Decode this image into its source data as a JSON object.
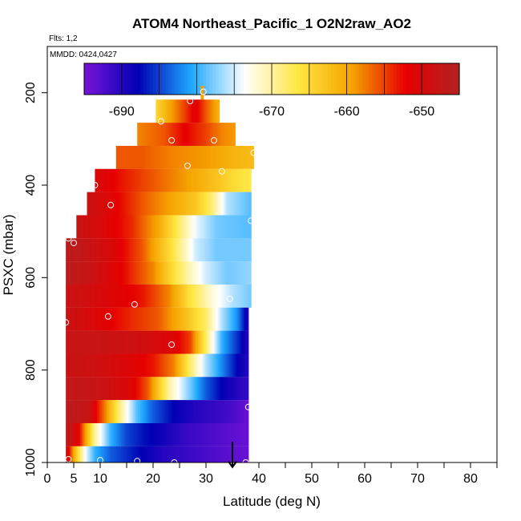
{
  "chart_data": {
    "type": "heatmap",
    "title": "ATOM4 Northeast_Pacific_1 O2N2raw_AO2",
    "flights_label": "Flts: 1,2",
    "dates_label": "MMDD: 0424,0427",
    "xlabel": "Latitude (deg N)",
    "ylabel": "PSXC (mbar)",
    "xlim": [
      0,
      85
    ],
    "ylim": [
      1000,
      100
    ],
    "y_reversed": true,
    "x_ticks": [
      0,
      5,
      10,
      20,
      30,
      40,
      50,
      60,
      70,
      80
    ],
    "x_minor_ticks": [
      15,
      25,
      35,
      45,
      55,
      65,
      75,
      85
    ],
    "y_ticks": [
      200,
      400,
      600,
      800,
      1000
    ],
    "colorbar": {
      "range": [
        -695,
        -645
      ],
      "ticks": [
        -690,
        -680,
        -670,
        -660,
        -650
      ],
      "colors": [
        "#7b14d9",
        "#0000b3",
        "#1fa8ff",
        "#ffffff",
        "#ffe640",
        "#f5a200",
        "#e60000",
        "#b22222"
      ]
    },
    "colorbar_ticks_text": [
      "-690",
      "-680",
      "-670",
      "-660",
      "-650"
    ],
    "layers": [
      {
        "p_top": 185,
        "p_bot": 215,
        "lat_min": 29,
        "lat_max": 29.5,
        "values": [
          [
            29,
            -659
          ],
          [
            29.5,
            -659
          ]
        ]
      },
      {
        "p_top": 215,
        "p_bot": 265,
        "lat_min": 20.5,
        "lat_max": 32.5,
        "values": [
          [
            20.5,
            -665
          ],
          [
            23,
            -660
          ],
          [
            26,
            -655
          ],
          [
            28,
            -651
          ],
          [
            30,
            -656
          ],
          [
            32.5,
            -661
          ]
        ]
      },
      {
        "p_top": 265,
        "p_bot": 315,
        "lat_min": 17,
        "lat_max": 35.5,
        "values": [
          [
            17,
            -658
          ],
          [
            22,
            -656
          ],
          [
            26,
            -652
          ],
          [
            30,
            -655
          ],
          [
            33,
            -658
          ],
          [
            35.5,
            -659
          ]
        ]
      },
      {
        "p_top": 315,
        "p_bot": 365,
        "lat_min": 13,
        "lat_max": 39,
        "values": [
          [
            13,
            -656
          ],
          [
            18,
            -656
          ],
          [
            24,
            -658
          ],
          [
            30,
            -659
          ],
          [
            35,
            -661
          ],
          [
            39,
            -662
          ]
        ]
      },
      {
        "p_top": 365,
        "p_bot": 415,
        "lat_min": 9,
        "lat_max": 38.5,
        "values": [
          [
            9,
            -650
          ],
          [
            14,
            -653
          ],
          [
            20,
            -656
          ],
          [
            26,
            -659
          ],
          [
            31,
            -662
          ],
          [
            35,
            -665
          ],
          [
            38.5,
            -667
          ]
        ]
      },
      {
        "p_top": 415,
        "p_bot": 465,
        "lat_min": 7.5,
        "lat_max": 38.5,
        "values": [
          [
            7.5,
            -648
          ],
          [
            12,
            -651
          ],
          [
            18,
            -656
          ],
          [
            24,
            -660
          ],
          [
            28,
            -663
          ],
          [
            31,
            -668
          ],
          [
            34,
            -676
          ],
          [
            38.5,
            -679
          ]
        ]
      },
      {
        "p_top": 465,
        "p_bot": 515,
        "lat_min": 5.5,
        "lat_max": 38.5,
        "values": [
          [
            5.5,
            -648
          ],
          [
            10,
            -650
          ],
          [
            16,
            -654
          ],
          [
            21,
            -660
          ],
          [
            25,
            -668
          ],
          [
            28,
            -674
          ],
          [
            32,
            -678
          ],
          [
            38.5,
            -679
          ]
        ]
      },
      {
        "p_top": 515,
        "p_bot": 565,
        "lat_min": 3.5,
        "lat_max": 38.5,
        "values": [
          [
            3.5,
            -646
          ],
          [
            6,
            -647
          ],
          [
            12,
            -650
          ],
          [
            18,
            -656
          ],
          [
            22,
            -663
          ],
          [
            25,
            -669
          ],
          [
            28,
            -675
          ],
          [
            32,
            -678
          ],
          [
            38.5,
            -678
          ]
        ]
      },
      {
        "p_top": 565,
        "p_bot": 615,
        "lat_min": 3.5,
        "lat_max": 38.5,
        "values": [
          [
            3.5,
            -646
          ],
          [
            8,
            -648
          ],
          [
            14,
            -652
          ],
          [
            20,
            -658
          ],
          [
            24,
            -666
          ],
          [
            27,
            -671
          ],
          [
            30,
            -675
          ],
          [
            34,
            -678
          ],
          [
            38.5,
            -677
          ]
        ]
      },
      {
        "p_top": 615,
        "p_bot": 665,
        "lat_min": 3.5,
        "lat_max": 38.5,
        "values": [
          [
            3.5,
            -648
          ],
          [
            10,
            -650
          ],
          [
            18,
            -653
          ],
          [
            23,
            -658
          ],
          [
            27,
            -666
          ],
          [
            31,
            -672
          ],
          [
            35,
            -676
          ],
          [
            38.5,
            -678
          ]
        ]
      },
      {
        "p_top": 665,
        "p_bot": 715,
        "lat_min": 3.5,
        "lat_max": 38,
        "values": [
          [
            3.5,
            -648
          ],
          [
            10,
            -651
          ],
          [
            16,
            -654
          ],
          [
            21,
            -656
          ],
          [
            26,
            -662
          ],
          [
            30,
            -668
          ],
          [
            33,
            -676
          ],
          [
            36,
            -682
          ],
          [
            38,
            -690
          ]
        ]
      },
      {
        "p_top": 715,
        "p_bot": 765,
        "lat_min": 3.5,
        "lat_max": 38,
        "values": [
          [
            3.5,
            -648
          ],
          [
            10,
            -648
          ],
          [
            18,
            -649
          ],
          [
            24,
            -651
          ],
          [
            27,
            -655
          ],
          [
            30,
            -668
          ],
          [
            33,
            -680
          ],
          [
            36,
            -686
          ],
          [
            38,
            -690
          ]
        ]
      },
      {
        "p_top": 765,
        "p_bot": 815,
        "lat_min": 3.5,
        "lat_max": 38,
        "values": [
          [
            3.5,
            -648
          ],
          [
            10,
            -649
          ],
          [
            16,
            -651
          ],
          [
            20,
            -653
          ],
          [
            24,
            -658
          ],
          [
            27,
            -668
          ],
          [
            30,
            -676
          ],
          [
            33,
            -682
          ],
          [
            36,
            -688
          ],
          [
            38,
            -690
          ]
        ]
      },
      {
        "p_top": 815,
        "p_bot": 865,
        "lat_min": 3.5,
        "lat_max": 38,
        "values": [
          [
            3.5,
            -647
          ],
          [
            10,
            -648
          ],
          [
            16,
            -651
          ],
          [
            19,
            -656
          ],
          [
            23,
            -670
          ],
          [
            27,
            -678
          ],
          [
            30,
            -684
          ],
          [
            33,
            -688
          ],
          [
            36,
            -690
          ],
          [
            38,
            -691
          ]
        ]
      },
      {
        "p_top": 865,
        "p_bot": 915,
        "lat_min": 3.5,
        "lat_max": 38,
        "values": [
          [
            3.5,
            -646
          ],
          [
            8,
            -648
          ],
          [
            11,
            -658
          ],
          [
            14,
            -670
          ],
          [
            17,
            -679
          ],
          [
            20,
            -684
          ],
          [
            24,
            -688
          ],
          [
            28,
            -690
          ],
          [
            32,
            -691
          ],
          [
            35,
            -692
          ],
          [
            38,
            -694
          ]
        ]
      },
      {
        "p_top": 915,
        "p_bot": 965,
        "lat_min": 3.5,
        "lat_max": 38,
        "values": [
          [
            3.5,
            -646
          ],
          [
            6,
            -652
          ],
          [
            9,
            -670
          ],
          [
            12,
            -680
          ],
          [
            15,
            -685
          ],
          [
            18,
            -687
          ],
          [
            22,
            -689
          ],
          [
            26,
            -691
          ],
          [
            30,
            -692
          ],
          [
            34,
            -693
          ],
          [
            38,
            -694
          ]
        ]
      },
      {
        "p_top": 965,
        "p_bot": 1015,
        "lat_min": 3.5,
        "lat_max": 38,
        "values": [
          [
            3.5,
            -647
          ],
          [
            5,
            -660
          ],
          [
            7,
            -673
          ],
          [
            9,
            -680
          ],
          [
            12,
            -684
          ],
          [
            15,
            -686
          ],
          [
            18,
            -688
          ],
          [
            22,
            -690
          ],
          [
            26,
            -691
          ],
          [
            30,
            -692
          ],
          [
            34,
            -693
          ],
          [
            38,
            -694
          ]
        ]
      }
    ],
    "markers": [
      [
        29.5,
        198
      ],
      [
        27,
        218
      ],
      [
        21.5,
        262
      ],
      [
        23.5,
        303
      ],
      [
        31.5,
        303
      ],
      [
        39,
        330
      ],
      [
        26.5,
        358
      ],
      [
        33,
        370
      ],
      [
        9,
        400
      ],
      [
        12,
        443
      ],
      [
        38.5,
        477
      ],
      [
        4,
        515
      ],
      [
        5,
        525
      ],
      [
        16.5,
        658
      ],
      [
        34.5,
        646
      ],
      [
        3.5,
        697
      ],
      [
        11.5,
        684
      ],
      [
        23.5,
        745
      ],
      [
        38,
        880
      ],
      [
        4,
        993
      ],
      [
        10,
        995
      ],
      [
        17,
        997
      ],
      [
        24,
        1000
      ],
      [
        37.5,
        1000
      ]
    ],
    "arrow": {
      "lat": 35,
      "p_from": 955,
      "p_to": 1010
    }
  }
}
